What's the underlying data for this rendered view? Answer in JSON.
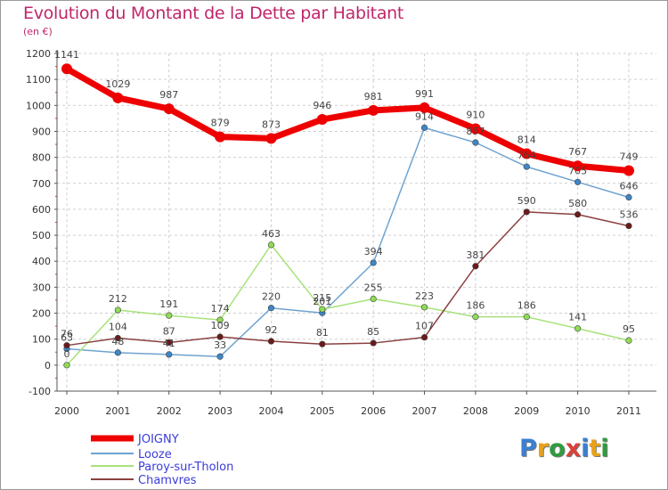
{
  "chart_data": {
    "type": "line",
    "title": "Evolution du Montant de la Dette par Habitant",
    "subtitle": "(en €)",
    "categories": [
      "2000",
      "2001",
      "2002",
      "2003",
      "2004",
      "2005",
      "2006",
      "2007",
      "2008",
      "2009",
      "2010",
      "2011"
    ],
    "ylim": [
      -100,
      1200
    ],
    "yticks": [
      "-100",
      "0",
      "100",
      "200",
      "300",
      "400",
      "500",
      "600",
      "700",
      "800",
      "900",
      "1000",
      "1100",
      "1200"
    ],
    "series": [
      {
        "name": "JOIGNY",
        "color": "#ee0000",
        "values": [
          1141,
          1029,
          987,
          879,
          873,
          946,
          981,
          991,
          910,
          814,
          767,
          749
        ]
      },
      {
        "name": "Looze",
        "color": "#6fa3d0",
        "values": [
          63,
          48,
          41,
          33,
          220,
          201,
          394,
          914,
          857,
          764,
          705,
          646
        ]
      },
      {
        "name": "Paroy-sur-Tholon",
        "color": "#a7e27a",
        "values": [
          0,
          212,
          191,
          174,
          463,
          215,
          255,
          223,
          186,
          186,
          141,
          95
        ]
      },
      {
        "name": "Chamvres",
        "color": "#8b4040",
        "values": [
          76,
          104,
          87,
          109,
          92,
          81,
          85,
          107,
          381,
          590,
          580,
          536
        ]
      }
    ],
    "value_labels": [
      [
        "1141",
        "1029",
        "987",
        "879",
        "873",
        "946",
        "981",
        "991",
        "910",
        "814",
        "767",
        "749"
      ],
      [
        "63",
        "48",
        "41",
        "33",
        "220",
        "201",
        "394",
        "914",
        "857",
        "764",
        "705",
        "646"
      ],
      [
        "0",
        "212",
        "191",
        "174",
        "463",
        "215",
        "255",
        "223",
        "186",
        "186",
        "141",
        "95"
      ],
      [
        "76",
        "104",
        "87",
        "109",
        "92",
        "81",
        "85",
        "107",
        "381",
        "590",
        "580",
        "536"
      ]
    ]
  },
  "legend": [
    "JOIGNY",
    "Looze",
    "Paroy-sur-Tholon",
    "Chamvres"
  ],
  "logo": {
    "letters": [
      "P",
      "r",
      "o",
      "x",
      "i",
      "t",
      "i"
    ],
    "colors": [
      "#3a7fd0",
      "#e8a21a",
      "#2f9c3e",
      "#d8413a",
      "#3a7fd0",
      "#e8a21a",
      "#2f9c3e"
    ]
  }
}
